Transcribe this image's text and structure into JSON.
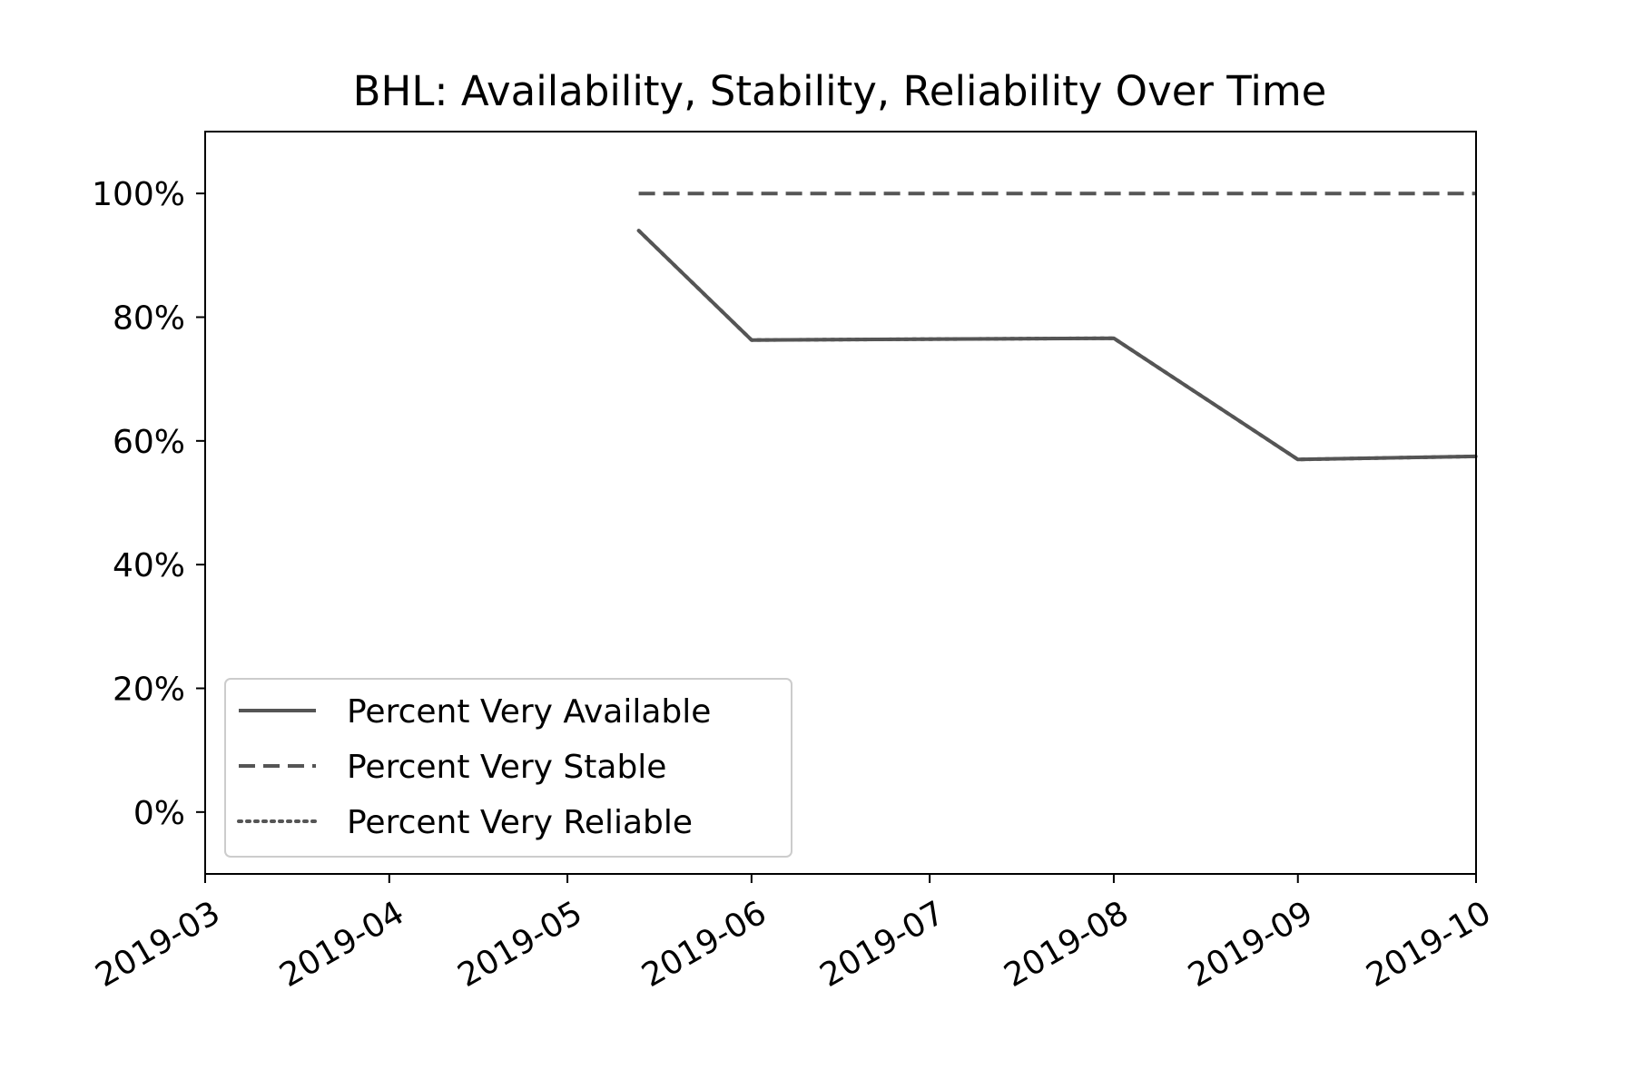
{
  "chart_data": {
    "type": "line",
    "title": "BHL: Availability, Stability, Reliability Over Time",
    "xlabel": "",
    "ylabel": "",
    "x_type": "date",
    "xlim": [
      "2019-03-01",
      "2019-10-01"
    ],
    "ylim": [
      -10,
      110
    ],
    "x_ticks": [
      "2019-03",
      "2019-04",
      "2019-05",
      "2019-06",
      "2019-07",
      "2019-08",
      "2019-09",
      "2019-10"
    ],
    "y_ticks": [
      "0%",
      "20%",
      "40%",
      "60%",
      "80%",
      "100%"
    ],
    "y_tick_values": [
      0,
      20,
      40,
      60,
      80,
      100
    ],
    "grid": false,
    "legend_position": "lower-left",
    "x": [
      "2019-05-13",
      "2019-06-01",
      "2019-08-01",
      "2019-09-01",
      "2019-10-01"
    ],
    "series": [
      {
        "name": "Percent Very Available",
        "style": "solid",
        "color": "#555555",
        "values": [
          94,
          76.3,
          76.6,
          57,
          57.5
        ]
      },
      {
        "name": "Percent Very Stable",
        "style": "dashed",
        "color": "#555555",
        "values": [
          100,
          100,
          100,
          100,
          100
        ]
      },
      {
        "name": "Percent Very Reliable",
        "style": "dotted",
        "color": "#555555",
        "values": [
          94,
          76.3,
          76.6,
          57,
          57.5
        ]
      }
    ]
  }
}
